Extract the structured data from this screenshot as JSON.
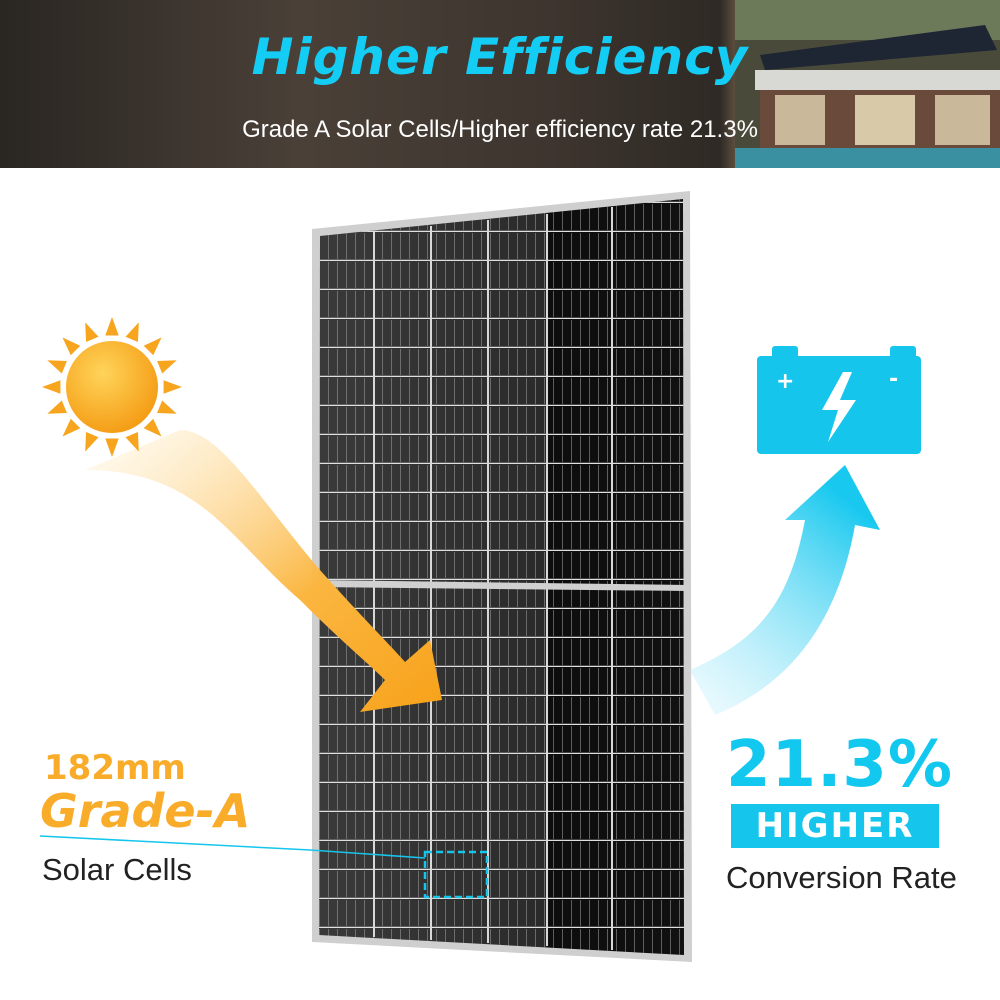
{
  "header": {
    "title": "Higher Efficiency",
    "subtitle": "Grade A Solar Cells/Higher efficiency rate 21.3%"
  },
  "left_callout": {
    "size": "182mm",
    "grade": "Grade-A",
    "label": "Solar Cells"
  },
  "right_callout": {
    "rate": "21.3%",
    "badge": "HIGHER",
    "label": "Conversion Rate"
  },
  "battery": {
    "plus": "+",
    "minus": "-"
  },
  "colors": {
    "accent_blue": "#14cdf5",
    "accent_orange": "#f8ac2a"
  },
  "icons": [
    "sun-icon",
    "battery-icon",
    "lightning-icon"
  ]
}
